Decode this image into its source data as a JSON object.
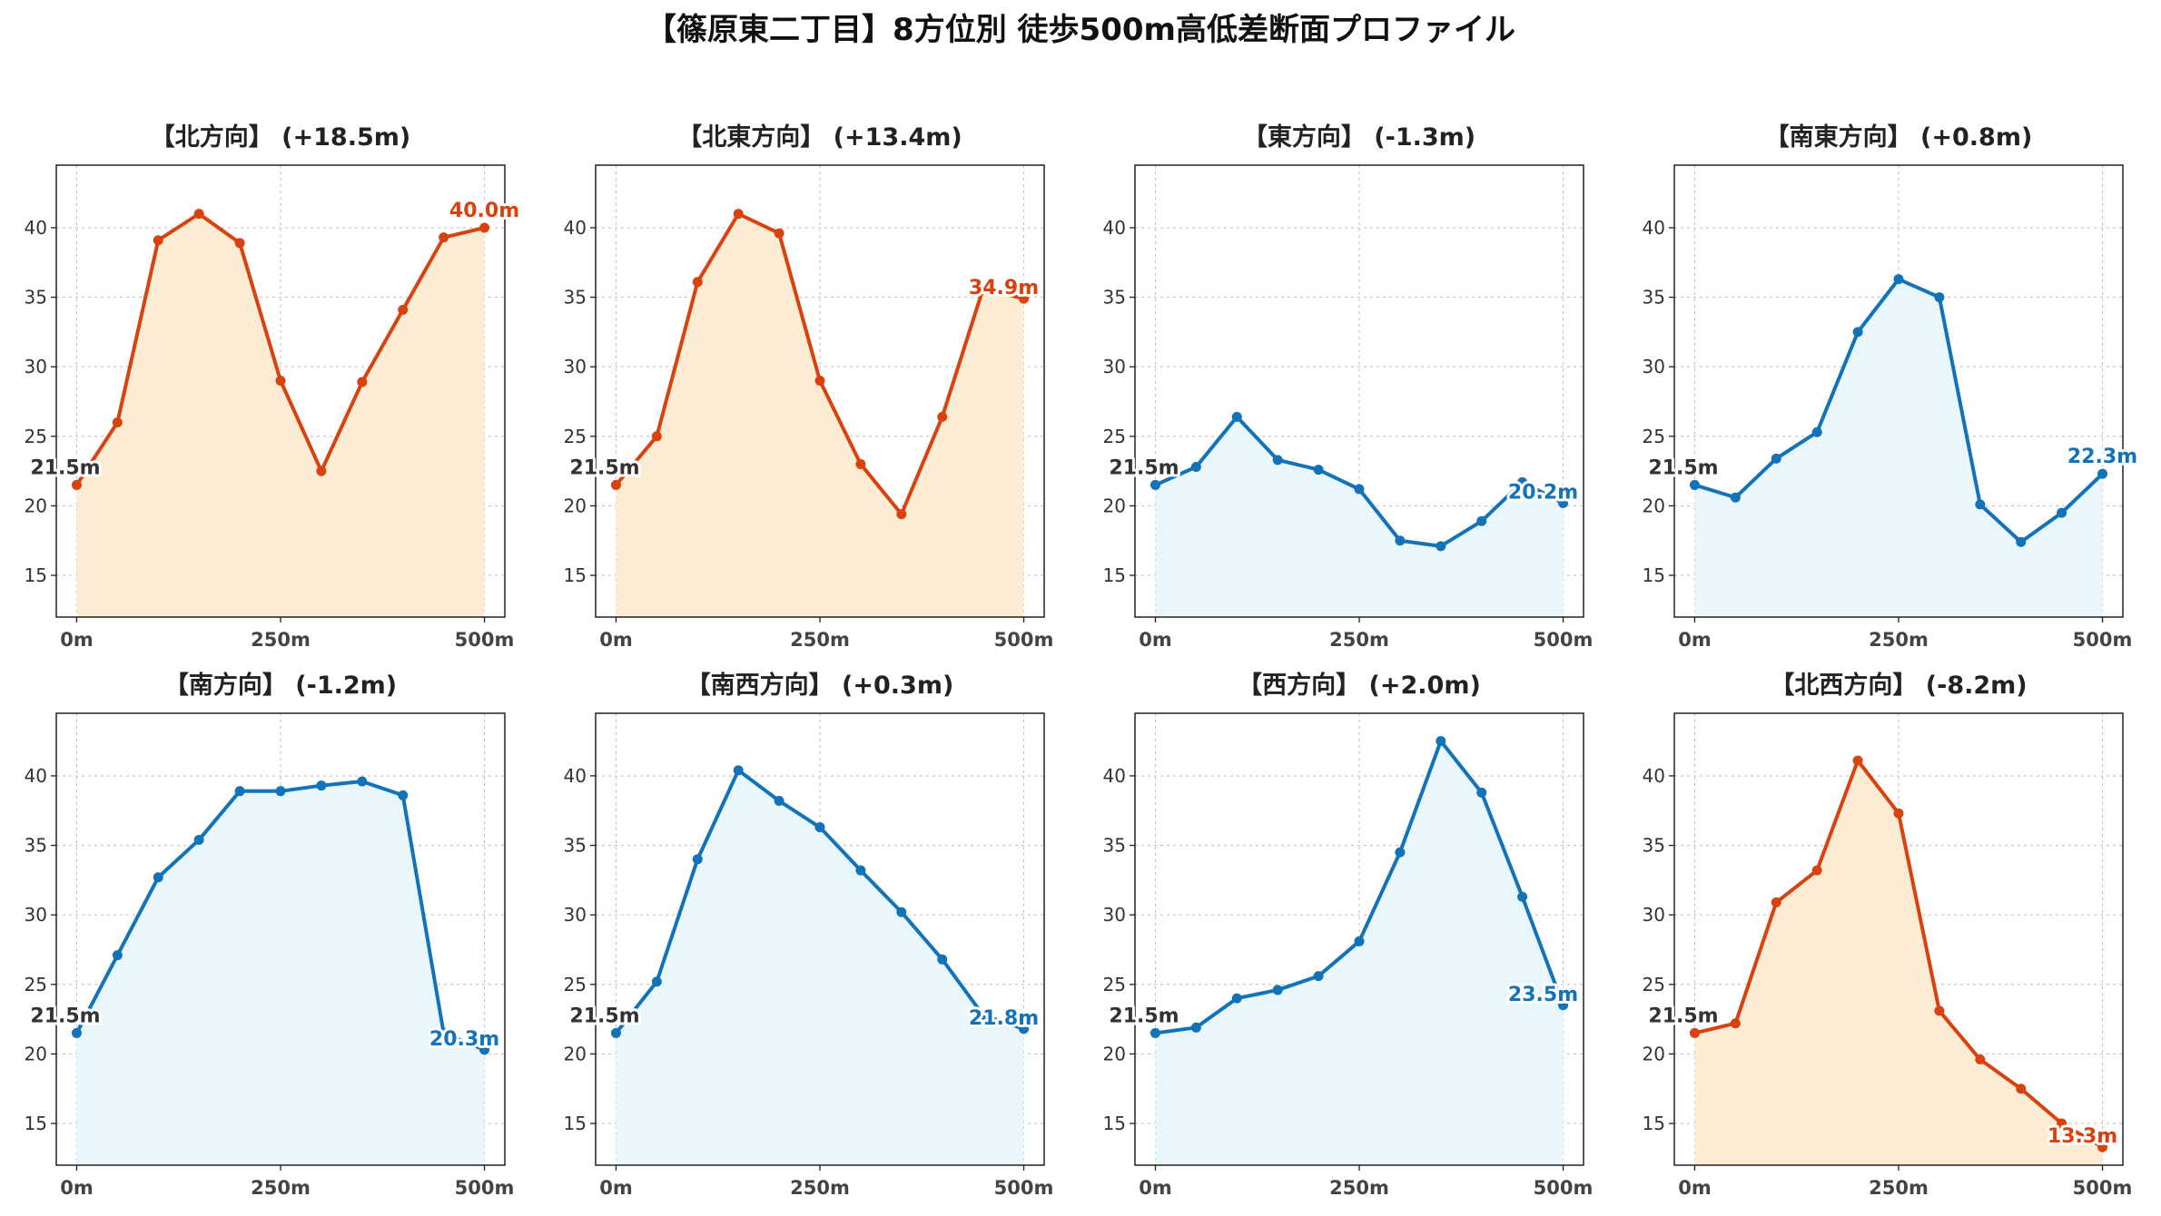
{
  "figure_title": "【篠原東二丁目】8方位別 徒歩500m高低差断面プロファイル",
  "colors": {
    "up": "#d9420f",
    "down": "#1273b8",
    "up_fill": "#fdecd4",
    "down_fill": "#e9f6fc",
    "grid": "#bdbdbd",
    "start_label": "#333333"
  },
  "chart_data": [
    {
      "type": "area",
      "title": "【北方向】 (+18.5m)",
      "trend": "up",
      "x": [
        0,
        50,
        100,
        150,
        200,
        250,
        300,
        350,
        400,
        450,
        500
      ],
      "y": [
        21.5,
        26.0,
        39.1,
        41.0,
        38.9,
        29.0,
        22.5,
        28.9,
        34.1,
        39.3,
        40.0
      ],
      "start_label": "21.5m",
      "end_label": "40.0m",
      "xticks": [
        "0m",
        "250m",
        "500m"
      ],
      "yticks": [
        15,
        20,
        25,
        30,
        35,
        40
      ],
      "ylim": [
        12,
        44.5
      ],
      "grid": true
    },
    {
      "type": "area",
      "title": "【北東方向】 (+13.4m)",
      "trend": "up",
      "x": [
        0,
        50,
        100,
        150,
        200,
        250,
        300,
        350,
        400,
        450,
        500
      ],
      "y": [
        21.5,
        25.0,
        36.1,
        41.0,
        39.6,
        29.0,
        23.0,
        19.4,
        26.4,
        35.6,
        34.9
      ],
      "start_label": "21.5m",
      "end_label": "34.9m",
      "xticks": [
        "0m",
        "250m",
        "500m"
      ],
      "yticks": [
        15,
        20,
        25,
        30,
        35,
        40
      ],
      "ylim": [
        12,
        44.5
      ],
      "grid": true
    },
    {
      "type": "area",
      "title": "【東方向】 (-1.3m)",
      "trend": "down",
      "x": [
        0,
        50,
        100,
        150,
        200,
        250,
        300,
        350,
        400,
        450,
        500
      ],
      "y": [
        21.5,
        22.8,
        26.4,
        23.3,
        22.6,
        21.2,
        17.5,
        17.1,
        18.9,
        21.7,
        20.2
      ],
      "start_label": "21.5m",
      "end_label": "20.2m",
      "xticks": [
        "0m",
        "250m",
        "500m"
      ],
      "yticks": [
        15,
        20,
        25,
        30,
        35,
        40
      ],
      "ylim": [
        12,
        44.5
      ],
      "grid": true
    },
    {
      "type": "area",
      "title": "【南東方向】 (+0.8m)",
      "trend": "down",
      "x": [
        0,
        50,
        100,
        150,
        200,
        250,
        300,
        350,
        400,
        450,
        500
      ],
      "y": [
        21.5,
        20.6,
        23.4,
        25.3,
        32.5,
        36.3,
        35.0,
        20.1,
        17.4,
        19.5,
        22.3
      ],
      "start_label": "21.5m",
      "end_label": "22.3m",
      "xticks": [
        "0m",
        "250m",
        "500m"
      ],
      "yticks": [
        15,
        20,
        25,
        30,
        35,
        40
      ],
      "ylim": [
        12,
        44.5
      ],
      "grid": true
    },
    {
      "type": "area",
      "title": "【南方向】 (-1.2m)",
      "trend": "down",
      "x": [
        0,
        50,
        100,
        150,
        200,
        250,
        300,
        350,
        400,
        450,
        500
      ],
      "y": [
        21.5,
        27.1,
        32.7,
        35.4,
        38.9,
        38.9,
        39.3,
        39.6,
        38.6,
        21.5,
        20.3
      ],
      "start_label": "21.5m",
      "end_label": "20.3m",
      "xticks": [
        "0m",
        "250m",
        "500m"
      ],
      "yticks": [
        15,
        20,
        25,
        30,
        35,
        40
      ],
      "ylim": [
        12,
        44.5
      ],
      "grid": true
    },
    {
      "type": "area",
      "title": "【南西方向】 (+0.3m)",
      "trend": "down",
      "x": [
        0,
        50,
        100,
        150,
        200,
        250,
        300,
        350,
        400,
        450,
        500
      ],
      "y": [
        21.5,
        25.2,
        34.0,
        40.4,
        38.2,
        36.3,
        33.2,
        30.2,
        26.8,
        22.8,
        21.8
      ],
      "start_label": "21.5m",
      "end_label": "21.8m",
      "xticks": [
        "0m",
        "250m",
        "500m"
      ],
      "yticks": [
        15,
        20,
        25,
        30,
        35,
        40
      ],
      "ylim": [
        12,
        44.5
      ],
      "grid": true
    },
    {
      "type": "area",
      "title": "【西方向】 (+2.0m)",
      "trend": "down",
      "x": [
        0,
        50,
        100,
        150,
        200,
        250,
        300,
        350,
        400,
        450,
        500
      ],
      "y": [
        21.5,
        21.9,
        24.0,
        24.6,
        25.6,
        28.1,
        34.5,
        42.5,
        38.8,
        31.3,
        23.5
      ],
      "start_label": "21.5m",
      "end_label": "23.5m",
      "xticks": [
        "0m",
        "250m",
        "500m"
      ],
      "yticks": [
        15,
        20,
        25,
        30,
        35,
        40
      ],
      "ylim": [
        12,
        44.5
      ],
      "grid": true
    },
    {
      "type": "area",
      "title": "【北西方向】 (-8.2m)",
      "trend": "up",
      "x": [
        0,
        50,
        100,
        150,
        200,
        250,
        300,
        350,
        400,
        450,
        500
      ],
      "y": [
        21.5,
        22.2,
        30.9,
        33.2,
        41.1,
        37.3,
        23.1,
        19.6,
        17.5,
        15.0,
        13.3
      ],
      "start_label": "21.5m",
      "end_label": "13.3m",
      "xticks": [
        "0m",
        "250m",
        "500m"
      ],
      "yticks": [
        15,
        20,
        25,
        30,
        35,
        40
      ],
      "ylim": [
        12,
        44.5
      ],
      "grid": true
    }
  ]
}
